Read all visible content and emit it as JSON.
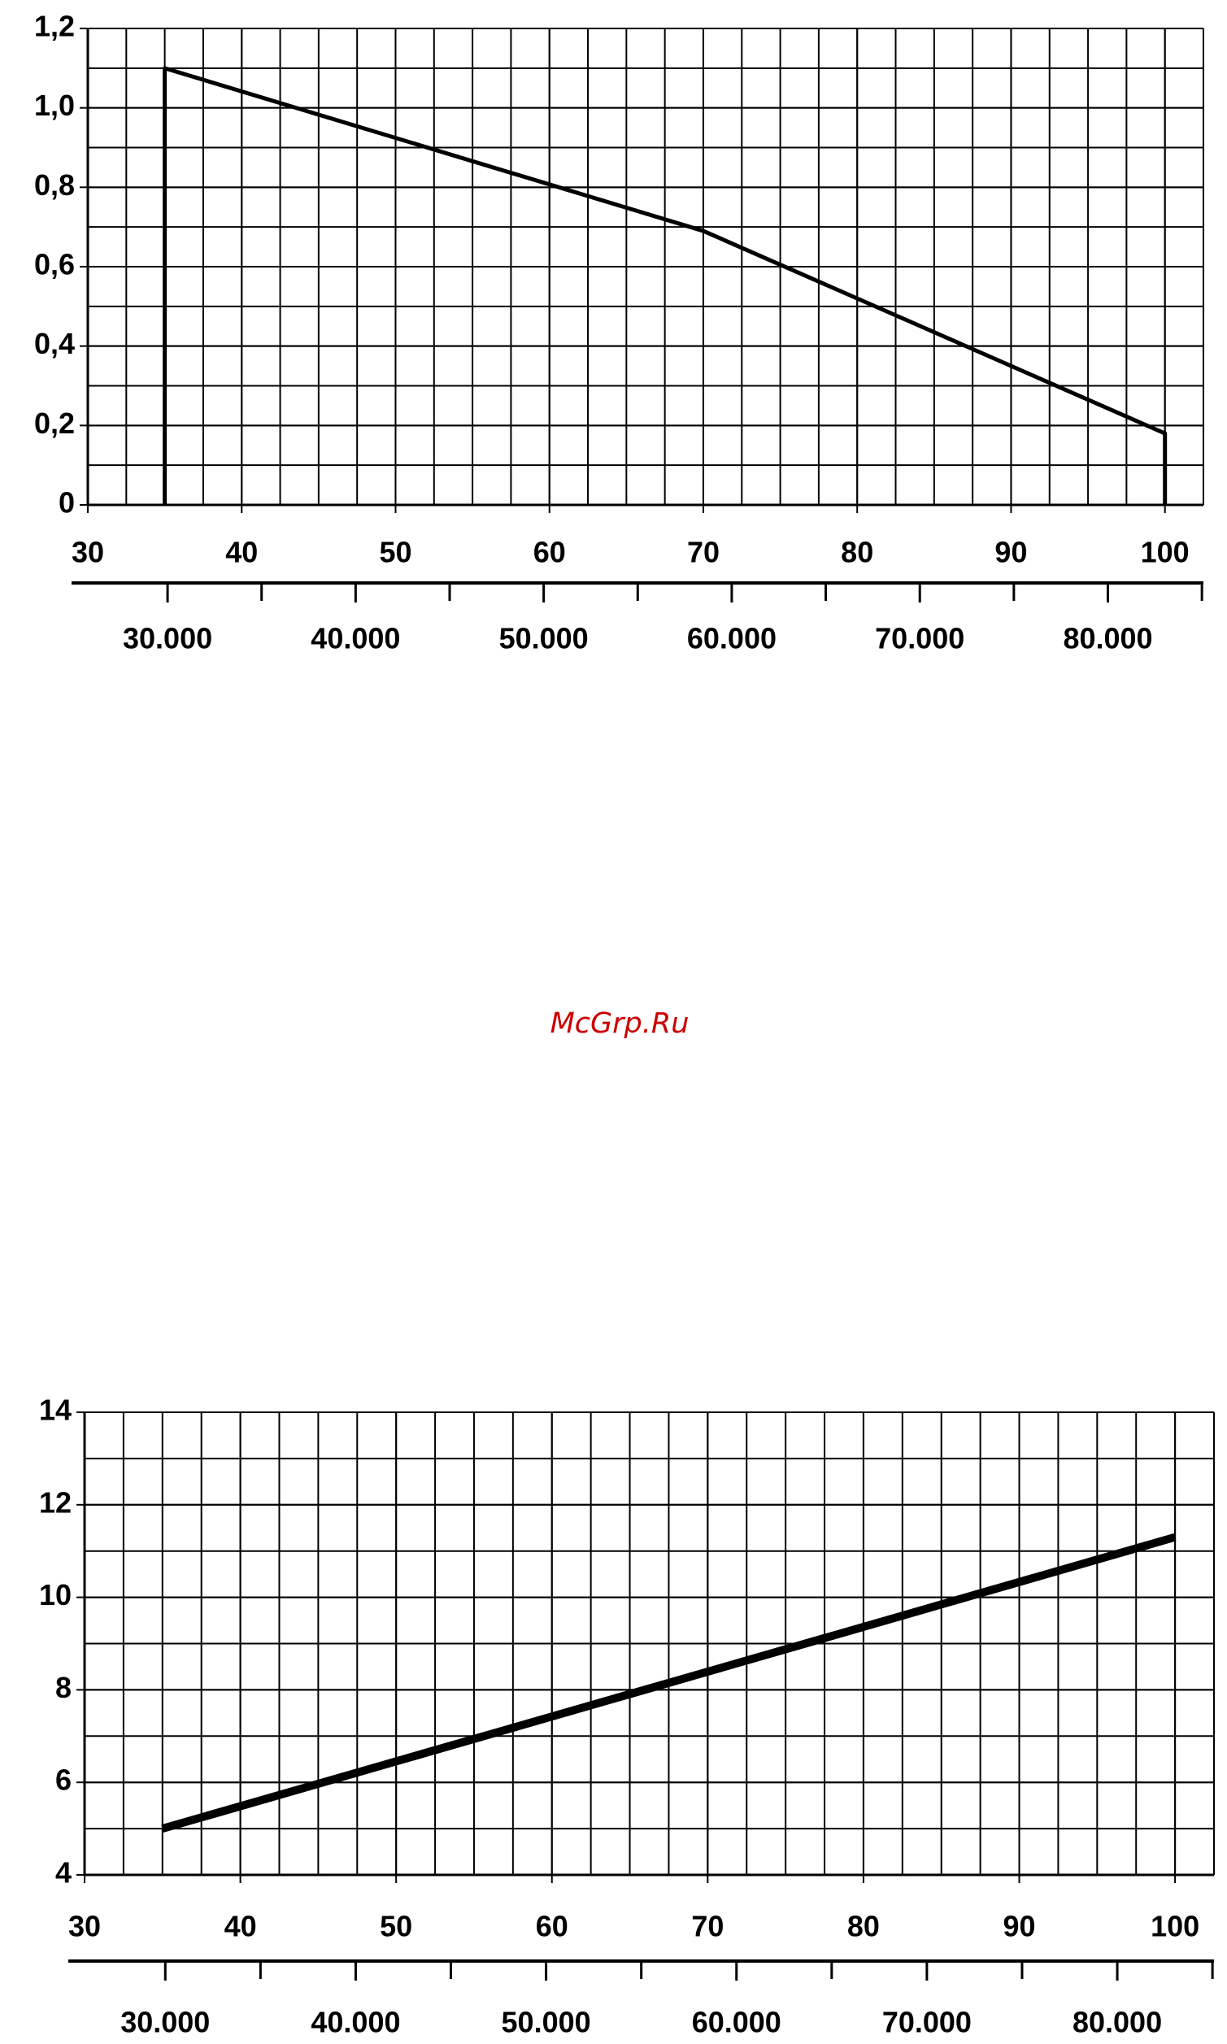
{
  "watermark": "McGrp.Ru",
  "chart_data": [
    {
      "type": "line",
      "x": [
        35,
        35,
        70,
        100,
        100
      ],
      "series": [
        {
          "color": "#000000",
          "values": [
            0,
            1.1,
            0.69,
            0.18,
            0
          ]
        }
      ],
      "xlim": [
        30,
        102.5
      ],
      "xticks": [
        30,
        40,
        50,
        60,
        70,
        80,
        90,
        100
      ],
      "ylim": [
        0,
        1.2
      ],
      "yticks": [
        0,
        {
          "value": 0.2,
          "label": "0,2"
        },
        {
          "value": 0.4,
          "label": "0,4"
        },
        {
          "value": 0.6,
          "label": "0,6"
        },
        {
          "value": 0.8,
          "label": "0,8"
        },
        {
          "value": 1.0,
          "label": "1,0"
        },
        {
          "value": 1.2,
          "label": "1,2"
        }
      ],
      "grid": true,
      "x_grid_divisions": 4,
      "y_grid_divisions": 2,
      "x2lim": [
        25760,
        85080
      ],
      "x2ticks": [
        {
          "value": 30000,
          "label": "30.000"
        },
        {
          "value": 40000,
          "label": "40.000"
        },
        {
          "value": 50000,
          "label": "50.000"
        },
        {
          "value": 60000,
          "label": "60.000"
        },
        {
          "value": 70000,
          "label": "70.000"
        },
        {
          "value": 80000,
          "label": "80.000"
        }
      ],
      "x2minorticks": [
        35000,
        45000,
        55000,
        65000,
        75000,
        85000
      ]
    },
    {
      "type": "line",
      "x": [
        35,
        100
      ],
      "series": [
        {
          "color": "#000000",
          "values": [
            5,
            11.3
          ]
        }
      ],
      "xlim": [
        30,
        102.5
      ],
      "xticks": [
        30,
        40,
        50,
        60,
        70,
        80,
        90,
        100
      ],
      "ylim": [
        4,
        14
      ],
      "yticks": [
        4,
        6,
        8,
        10,
        12,
        14
      ],
      "grid": true,
      "x_grid_divisions": 4,
      "y_grid_divisions": 2,
      "x2lim": [
        25760,
        85080
      ],
      "x2ticks": [
        {
          "value": 30000,
          "label": "30.000"
        },
        {
          "value": 40000,
          "label": "40.000"
        },
        {
          "value": 50000,
          "label": "50.000"
        },
        {
          "value": 60000,
          "label": "60.000"
        },
        {
          "value": 70000,
          "label": "70.000"
        },
        {
          "value": 80000,
          "label": "80.000"
        }
      ],
      "x2minorticks": [
        35000,
        45000,
        55000,
        65000,
        75000,
        85000
      ]
    }
  ]
}
